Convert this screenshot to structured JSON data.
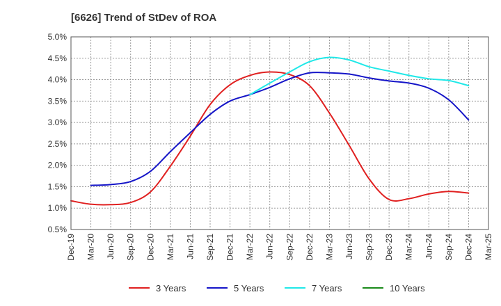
{
  "chart_data": {
    "type": "line",
    "title": "[6626]  Trend of StDev of ROA",
    "xlabel": "",
    "ylabel": "",
    "ylim": [
      0.5,
      5.0
    ],
    "y_ticks": [
      "0.5%",
      "1.0%",
      "1.5%",
      "2.0%",
      "2.5%",
      "3.0%",
      "3.5%",
      "4.0%",
      "4.5%",
      "5.0%"
    ],
    "y_tick_values": [
      0.5,
      1.0,
      1.5,
      2.0,
      2.5,
      3.0,
      3.5,
      4.0,
      4.5,
      5.0
    ],
    "categories": [
      "Dec-19",
      "Mar-20",
      "Jun-20",
      "Sep-20",
      "Dec-20",
      "Mar-21",
      "Jun-21",
      "Sep-21",
      "Dec-21",
      "Mar-22",
      "Jun-22",
      "Sep-22",
      "Dec-22",
      "Mar-23",
      "Jun-23",
      "Sep-23",
      "Dec-23",
      "Mar-24",
      "Jun-24",
      "Sep-24",
      "Dec-24",
      "Mar-25"
    ],
    "grid": true,
    "legend_position": "bottom",
    "series": [
      {
        "name": "3 Years",
        "color": "#e02020",
        "values": [
          1.17,
          1.09,
          1.08,
          1.13,
          1.38,
          1.98,
          2.68,
          3.42,
          3.88,
          4.1,
          4.18,
          4.12,
          3.86,
          3.22,
          2.46,
          1.68,
          1.2,
          1.22,
          1.33,
          1.39,
          1.35,
          null
        ]
      },
      {
        "name": "5 Years",
        "color": "#1515c8",
        "values": [
          null,
          1.53,
          1.55,
          1.62,
          1.86,
          2.32,
          2.76,
          3.19,
          3.5,
          3.65,
          3.82,
          4.02,
          4.16,
          4.16,
          4.13,
          4.04,
          3.97,
          3.92,
          3.8,
          3.53,
          3.06,
          null
        ]
      },
      {
        "name": "7 Years",
        "color": "#20e8e8",
        "values": [
          null,
          null,
          null,
          null,
          null,
          null,
          null,
          null,
          null,
          3.65,
          3.92,
          4.18,
          4.42,
          4.52,
          4.46,
          4.3,
          4.2,
          4.1,
          4.02,
          3.98,
          3.86,
          null
        ]
      },
      {
        "name": "10 Years",
        "color": "#1a8a1a",
        "values": [
          null,
          null,
          null,
          null,
          null,
          null,
          null,
          null,
          null,
          null,
          null,
          null,
          null,
          null,
          null,
          null,
          null,
          null,
          null,
          null,
          null,
          null
        ]
      }
    ]
  }
}
